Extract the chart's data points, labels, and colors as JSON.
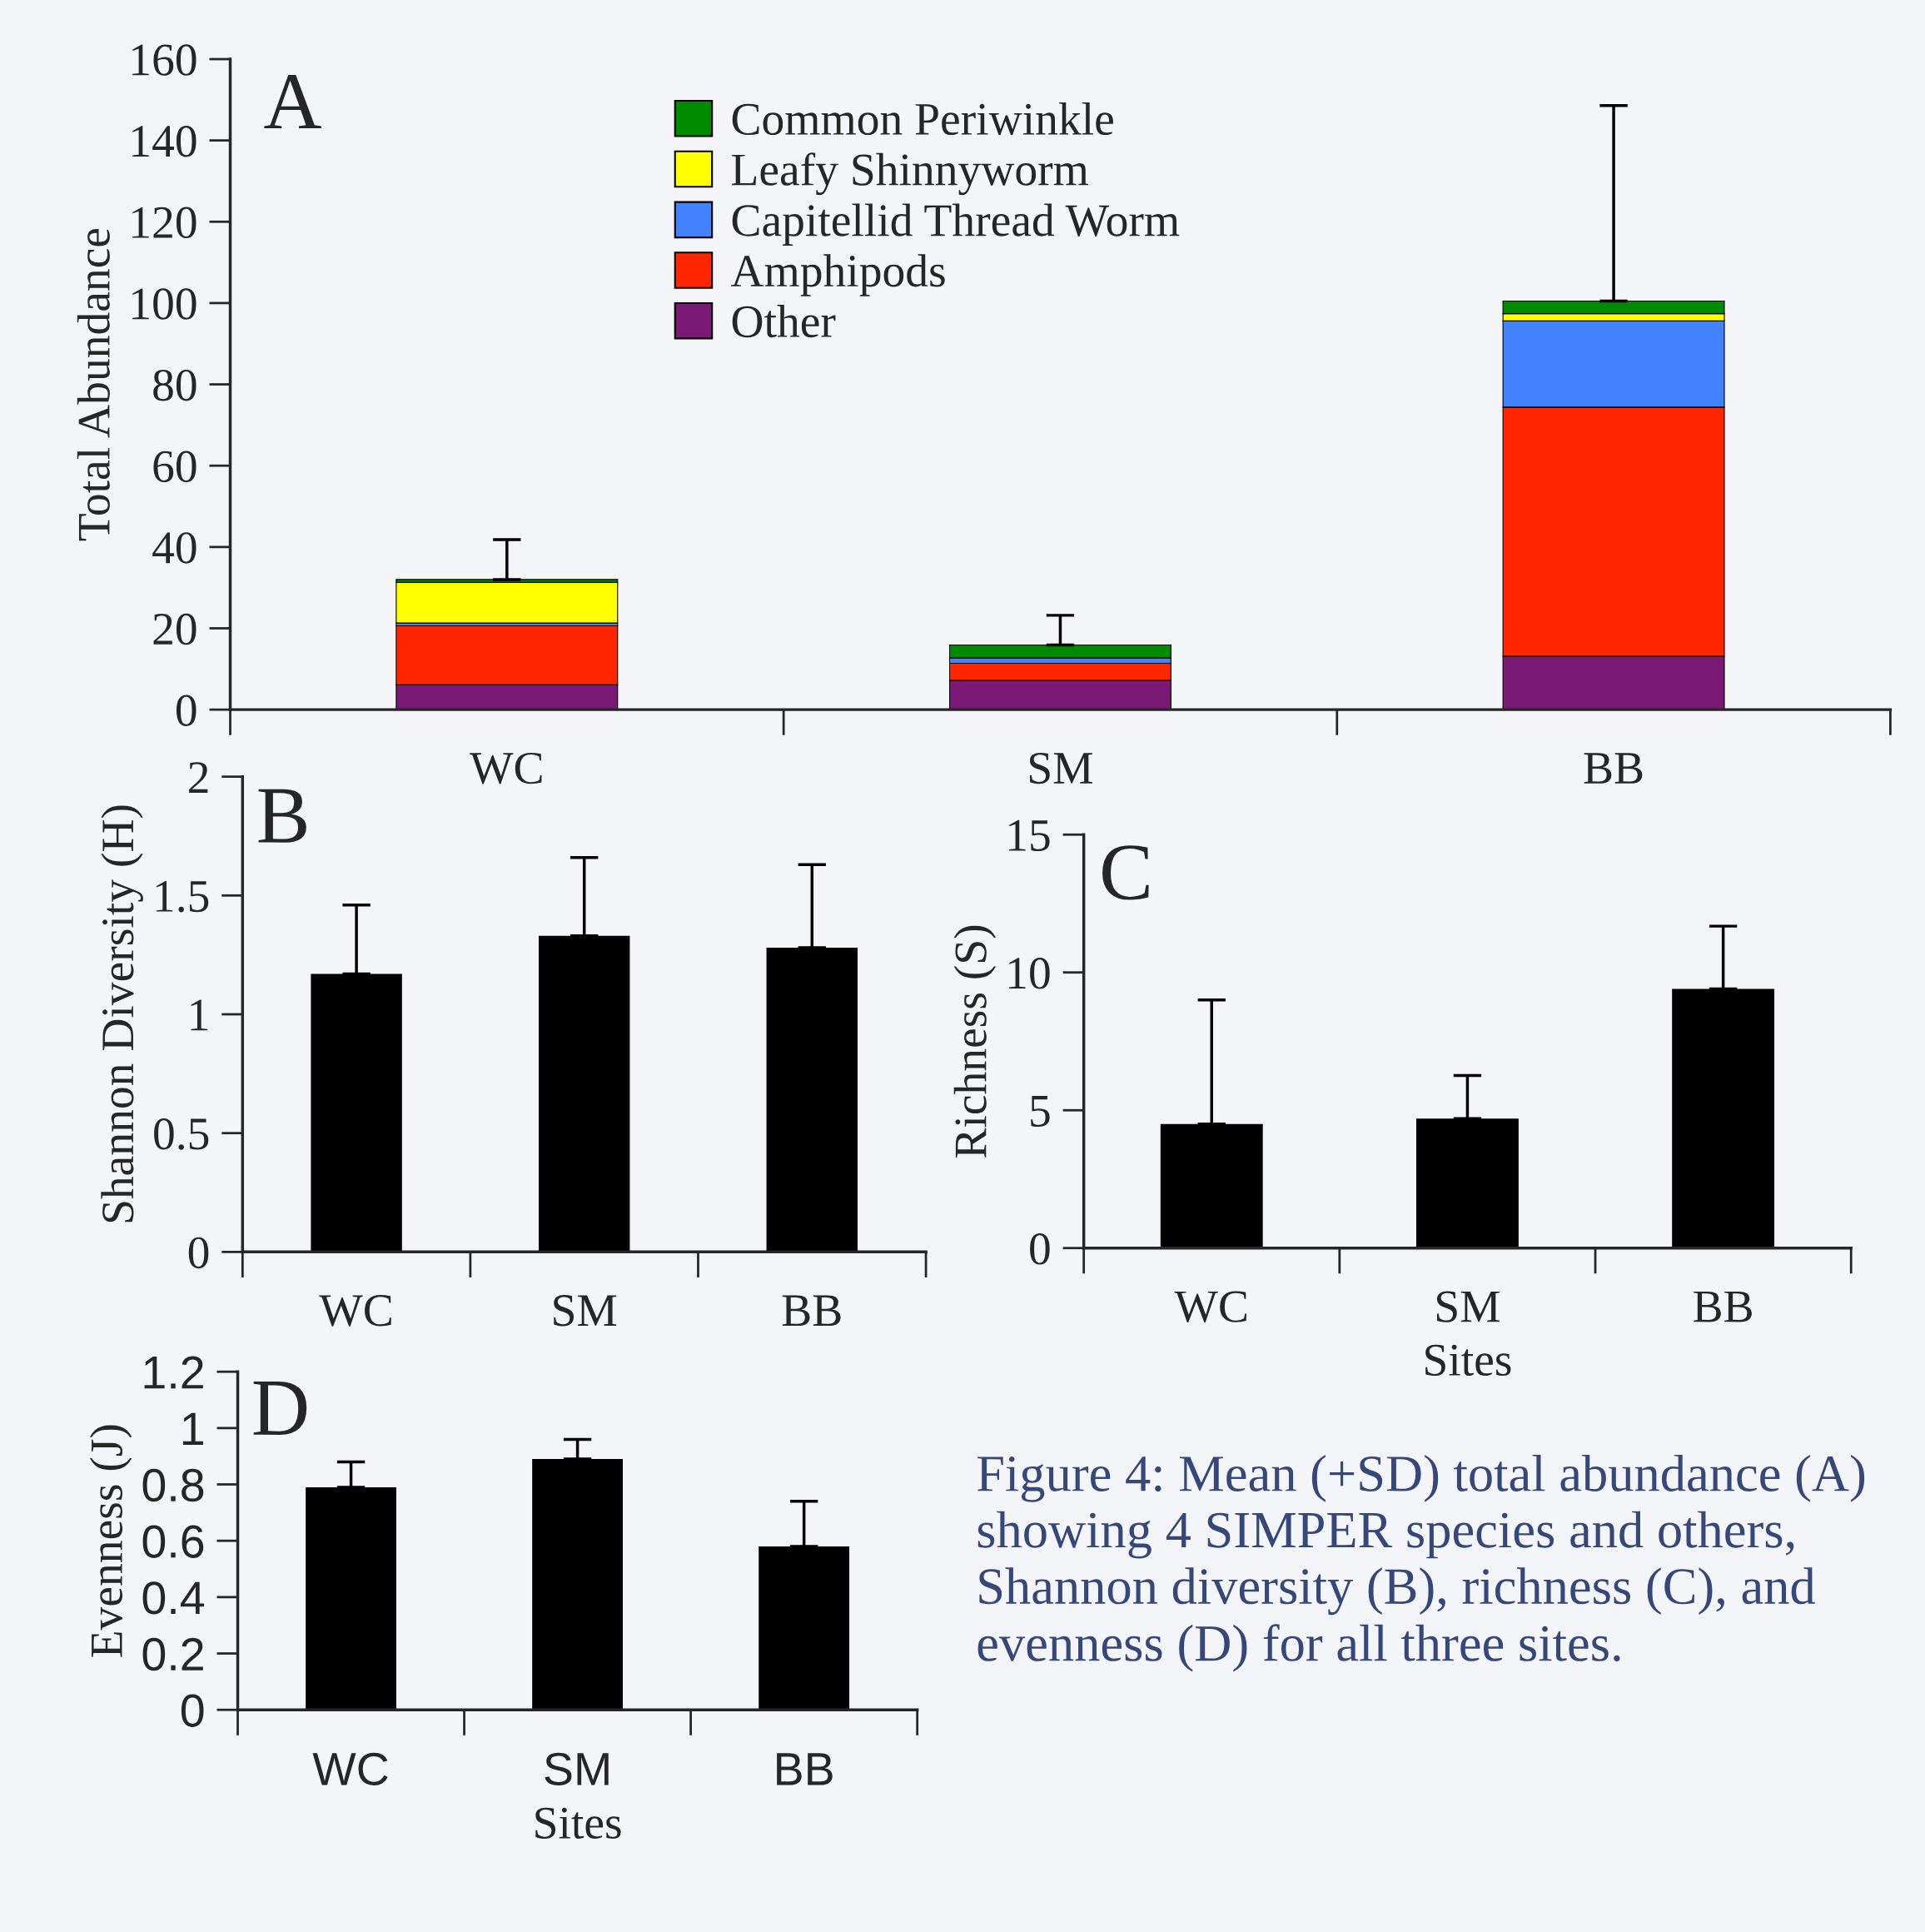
{
  "chart_data": [
    {
      "type": "bar",
      "stacked": true,
      "ylabel": "Total Abundance",
      "categories": [
        "WC",
        "SM",
        "BB"
      ],
      "ylim": [
        0,
        160
      ],
      "yticks": [
        0,
        20,
        40,
        60,
        80,
        100,
        120,
        140,
        160
      ],
      "legend": "top",
      "grid": false,
      "annotations": [
        "A"
      ],
      "series": [
        {
          "name": "Other",
          "color": "#7b1a76",
          "values": [
            6.1,
            7.2,
            13.1
          ]
        },
        {
          "name": "Amphipods",
          "color": "#ff2600",
          "values": [
            14.5,
            4.2,
            61.3
          ]
        },
        {
          "name": "Capitellid Thread Worm",
          "color": "#4282ff",
          "values": [
            0.7,
            1.3,
            21.2
          ]
        },
        {
          "name": "Leafy Shinnyworm",
          "color": "#ffff00",
          "values": [
            10.0,
            null,
            1.8
          ]
        },
        {
          "name": "Common Periwinkle",
          "color": "#008a00",
          "values": [
            0.7,
            3.2,
            3.1
          ],
          "errors": [
            [
              32.0,
              41.8
            ],
            [
              15.9,
              23.2
            ],
            [
              100.5,
              148.6
            ]
          ]
        }
      ]
    },
    {
      "type": "bar",
      "ylabel": "Shannon Diversity (H)",
      "categories": [
        "WC",
        "SM",
        "BB"
      ],
      "ylim": [
        0,
        2
      ],
      "yticks": [
        0,
        0.5,
        1,
        1.5,
        2
      ],
      "grid": false,
      "annotations": [
        "B"
      ],
      "series": [
        {
          "color": "#000000",
          "values": [
            1.17,
            1.33,
            1.28
          ],
          "errors": [
            [
              1.17,
              1.46
            ],
            [
              1.33,
              1.66
            ],
            [
              1.28,
              1.63
            ]
          ]
        }
      ]
    },
    {
      "type": "bar",
      "ylabel": "Richness (S)",
      "xlabel": "Sites",
      "categories": [
        "WC",
        "SM",
        "BB"
      ],
      "ylim": [
        0,
        15
      ],
      "yticks": [
        0,
        5,
        10,
        15
      ],
      "grid": false,
      "annotations": [
        "C"
      ],
      "series": [
        {
          "color": "#000000",
          "values": [
            4.5,
            4.7,
            9.4
          ],
          "errors": [
            [
              4.5,
              9.0
            ],
            [
              4.7,
              6.26
            ],
            [
              9.4,
              11.68
            ]
          ]
        }
      ]
    },
    {
      "type": "bar",
      "ylabel": "Evenness (J)",
      "xlabel": "Sites",
      "categories": [
        "WC",
        "SM",
        "BB"
      ],
      "ylim": [
        0,
        1.2
      ],
      "yticks": [
        0,
        0.2,
        0.4,
        0.6,
        0.8,
        1,
        1.2
      ],
      "grid": false,
      "annotations": [
        "D",
        "Figure 4: Mean (+SD) total abundance (A) showing 4 SIMPER species and others, Shannon diversity (B), richness (C), and evenness (D) for all three sites."
      ],
      "series": [
        {
          "color": "#000000",
          "values": [
            0.79,
            0.89,
            0.58
          ],
          "errors": [
            [
              0.79,
              0.88
            ],
            [
              0.89,
              0.96
            ],
            [
              0.58,
              0.74
            ]
          ]
        }
      ]
    }
  ]
}
